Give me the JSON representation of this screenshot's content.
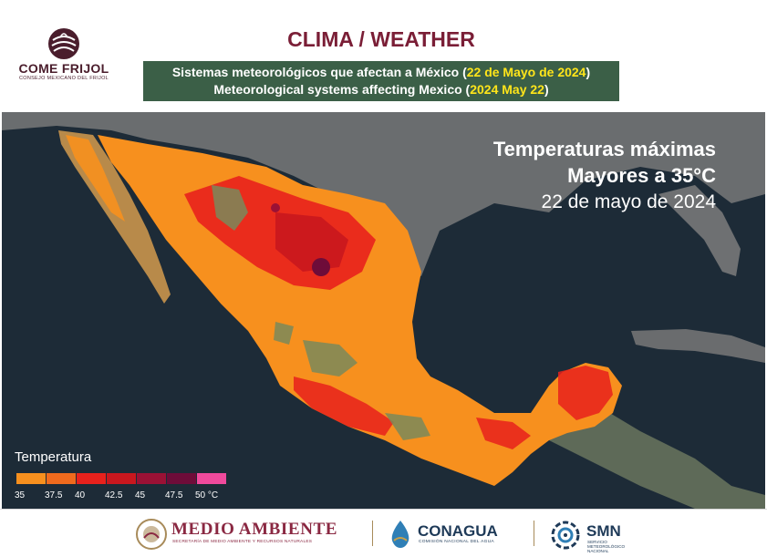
{
  "header": {
    "logo_name": "COME FRIJOL",
    "logo_sub": "CONSEJO MEXICANO DEL FRIJOL",
    "title": "CLIMA / WEATHER",
    "subtitle_es_prefix": "Sistemas meteorológicos que afectan a México (",
    "subtitle_es_date": "22 de Mayo de 2024",
    "subtitle_es_suffix": ")",
    "subtitle_en_prefix": "Meteorological systems affecting Mexico (",
    "subtitle_en_date": "2024 May 22",
    "subtitle_en_suffix": ")"
  },
  "map": {
    "title_line1": "Temperaturas máximas",
    "title_line2": "Mayores a 35°C",
    "title_line3": "22 de mayo de 2024"
  },
  "legend": {
    "title": "Temperatura",
    "labels": [
      "35",
      "37.5",
      "40",
      "42.5",
      "45",
      "47.5",
      "50 °C"
    ],
    "colors": [
      "#f7901e",
      "#f06a1d",
      "#e8211c",
      "#c9171e",
      "#9b1135",
      "#6e0c39",
      "#f04a9c"
    ]
  },
  "footer": {
    "medio_ambiente": "MEDIO AMBIENTE",
    "medio_ambiente_sub": "SECRETARÍA DE MEDIO AMBIENTE Y RECURSOS NATURALES",
    "conagua": "CONAGUA",
    "conagua_sub": "COMISIÓN NACIONAL DEL AGUA",
    "smn": "SMN",
    "smn_sub": "SERVICIO METEOROLÓGICO NACIONAL"
  }
}
